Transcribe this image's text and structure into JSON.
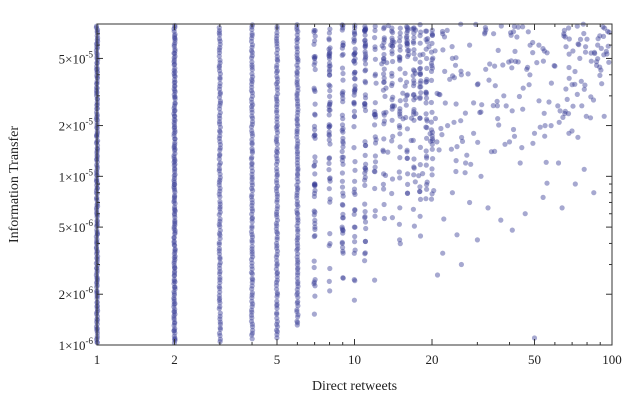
{
  "chart_data": {
    "type": "scatter",
    "x_scale": "log",
    "y_scale": "log",
    "xlabel": "Direct retweets",
    "ylabel": "Information Transfer",
    "xlim": [
      1,
      100
    ],
    "ylim": [
      1e-06,
      8e-05
    ],
    "x_ticks": [
      {
        "value": 1,
        "label": "1"
      },
      {
        "value": 2,
        "label": "2"
      },
      {
        "value": 5,
        "label": "5"
      },
      {
        "value": 10,
        "label": "10"
      },
      {
        "value": 20,
        "label": "20"
      },
      {
        "value": 50,
        "label": "50"
      },
      {
        "value": 100,
        "label": "100"
      }
    ],
    "y_ticks": [
      {
        "value": 1e-06,
        "mant": "1",
        "exp": "-6"
      },
      {
        "value": 2e-06,
        "mant": "2",
        "exp": "-6"
      },
      {
        "value": 5e-06,
        "mant": "5",
        "exp": "-6"
      },
      {
        "value": 1e-05,
        "mant": "1",
        "exp": "-5"
      },
      {
        "value": 2e-05,
        "mant": "2",
        "exp": "-5"
      },
      {
        "value": 5e-05,
        "mant": "5",
        "exp": "-5"
      }
    ],
    "grid": false,
    "marker_color": "#3a3f96",
    "marker_opacity": 0.45,
    "columns": [
      {
        "x": 1,
        "y_min": 1e-06,
        "y_max": 8e-05,
        "density": "solid"
      },
      {
        "x": 2,
        "y_min": 1e-06,
        "y_max": 8e-05,
        "density": "solid"
      },
      {
        "x": 3,
        "y_min": 1e-06,
        "y_max": 8e-05,
        "density": "dense"
      },
      {
        "x": 4,
        "y_min": 1.1e-06,
        "y_max": 8e-05,
        "density": "dense"
      },
      {
        "x": 5,
        "y_min": 1.1e-06,
        "y_max": 8e-05,
        "density": "dense"
      },
      {
        "x": 6,
        "y_min": 1.3e-06,
        "y_max": 8e-05,
        "density": "dense"
      },
      {
        "x": 7,
        "y_min": 1.3e-06,
        "y_max": 8e-05,
        "density": "medium"
      },
      {
        "x": 8,
        "y_min": 1.6e-06,
        "y_max": 8e-05,
        "density": "medium"
      },
      {
        "x": 9,
        "y_min": 1.6e-06,
        "y_max": 8e-05,
        "density": "medium"
      },
      {
        "x": 10,
        "y_min": 1.8e-06,
        "y_max": 8e-05,
        "density": "medium"
      },
      {
        "x": 11,
        "y_min": 2e-06,
        "y_max": 8e-05,
        "density": "medium"
      },
      {
        "x": 12,
        "y_min": 2.2e-06,
        "y_max": 8e-05,
        "density": "sparse"
      },
      {
        "x": 13,
        "y_min": 2.5e-06,
        "y_max": 8e-05,
        "density": "sparse"
      },
      {
        "x": 14,
        "y_min": 2.8e-06,
        "y_max": 8e-05,
        "density": "sparse"
      },
      {
        "x": 15,
        "y_min": 3e-06,
        "y_max": 8e-05,
        "density": "sparse"
      },
      {
        "x": 16,
        "y_min": 3.5e-06,
        "y_max": 8e-05,
        "density": "sparse"
      },
      {
        "x": 17,
        "y_min": 4e-06,
        "y_max": 8e-05,
        "density": "sparse"
      },
      {
        "x": 18,
        "y_min": 4e-06,
        "y_max": 8e-05,
        "density": "sparse"
      },
      {
        "x": 19,
        "y_min": 4.5e-06,
        "y_max": 8e-05,
        "density": "sparse"
      },
      {
        "x": 20,
        "y_min": 5e-06,
        "y_max": 8e-05,
        "density": "sparse"
      }
    ],
    "scattered_points": [
      [
        22,
        7e-05
      ],
      [
        24,
        5e-05
      ],
      [
        26,
        4e-05
      ],
      [
        28,
        6e-05
      ],
      [
        30,
        3.5e-05
      ],
      [
        32,
        7e-05
      ],
      [
        35,
        4.5e-05
      ],
      [
        38,
        3e-05
      ],
      [
        42,
        5.5e-05
      ],
      [
        45,
        2.5e-05
      ],
      [
        48,
        4e-05
      ],
      [
        52,
        6e-05
      ],
      [
        55,
        2e-05
      ],
      [
        60,
        4.5e-05
      ],
      [
        65,
        7e-05
      ],
      [
        70,
        3.5e-05
      ],
      [
        75,
        5e-05
      ],
      [
        80,
        6.5e-05
      ],
      [
        88,
        6e-05
      ],
      [
        95,
        5.5e-05
      ],
      [
        23,
        2e-05
      ],
      [
        25,
        1.5e-05
      ],
      [
        27,
        1.2e-05
      ],
      [
        29,
        1.8e-05
      ],
      [
        31,
        1e-05
      ],
      [
        34,
        1.4e-05
      ],
      [
        36,
        2.2e-05
      ],
      [
        40,
        1.6e-05
      ],
      [
        44,
        1.2e-05
      ],
      [
        50,
        1.8e-05
      ],
      [
        58,
        2e-05
      ],
      [
        62,
        1.2e-05
      ],
      [
        68,
        1.8e-05
      ],
      [
        72,
        9e-06
      ],
      [
        78,
        1.1e-05
      ],
      [
        24,
        8e-06
      ],
      [
        28,
        7e-06
      ],
      [
        33,
        6.5e-06
      ],
      [
        37,
        5.5e-06
      ],
      [
        46,
        6e-06
      ],
      [
        54,
        7.5e-06
      ],
      [
        64,
        6.5e-06
      ],
      [
        85,
        8e-06
      ],
      [
        25,
        4.5e-06
      ],
      [
        30,
        4.2e-06
      ],
      [
        22,
        3.5e-06
      ],
      [
        26,
        3e-06
      ],
      [
        41,
        4.8e-06
      ],
      [
        21,
        2.6e-06
      ],
      [
        50,
        1.1e-06
      ]
    ]
  }
}
